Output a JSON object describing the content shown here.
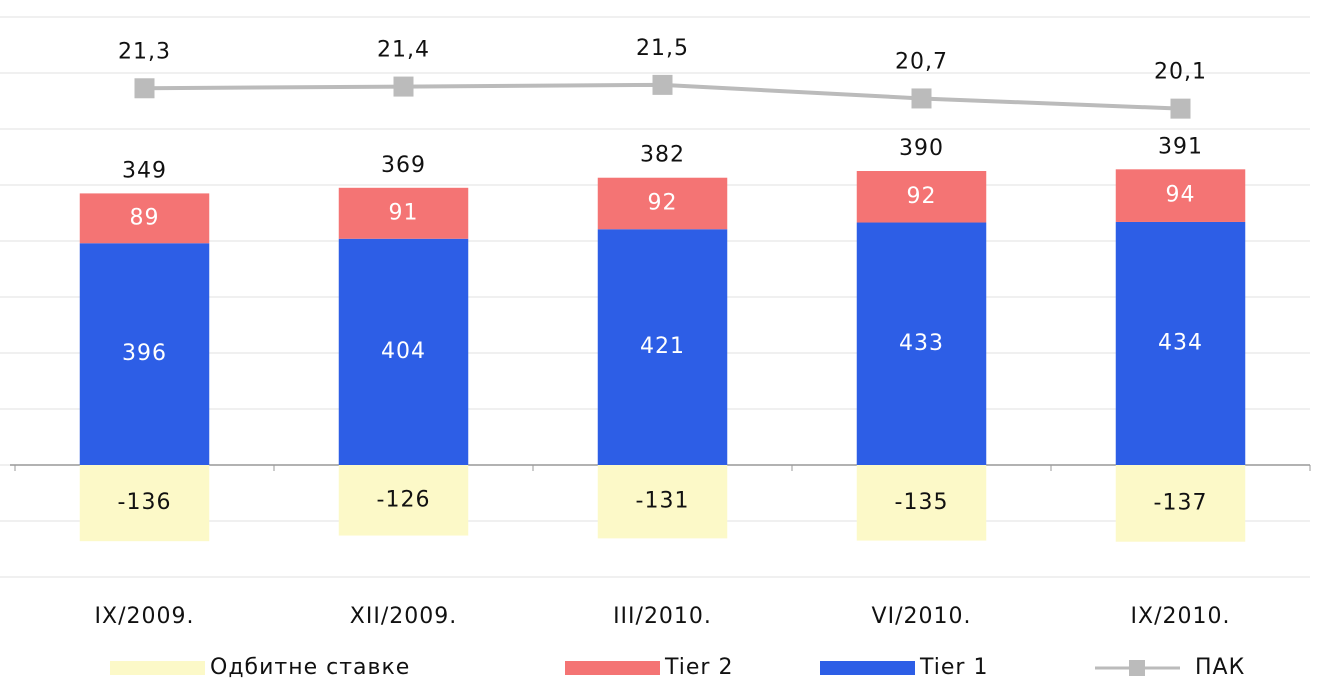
{
  "chart_data": {
    "type": "stacked-bar-line",
    "categories": [
      "IX/2009.",
      "XII/2009.",
      "III/2010.",
      "VI/2010.",
      "IX/2010."
    ],
    "series": [
      {
        "name": "Tier 1",
        "type": "bar",
        "color": "#2d5ee6",
        "values": [
          396,
          404,
          421,
          433,
          434
        ]
      },
      {
        "name": "Tier 2",
        "type": "bar",
        "color": "#f47474",
        "values": [
          89,
          91,
          92,
          92,
          94
        ]
      },
      {
        "name": "Одбитне ставке",
        "type": "bar",
        "color": "#fcf9c8",
        "values": [
          -136,
          -126,
          -131,
          -135,
          -137
        ]
      },
      {
        "name": "ПАК",
        "type": "line",
        "axis": "y2",
        "color": "#bbbbbb",
        "values": [
          21.3,
          21.4,
          21.5,
          20.7,
          20.1
        ],
        "value_labels": [
          "21,3",
          "21,4",
          "21,5",
          "20,7",
          "20,1"
        ]
      }
    ],
    "totals": [
      349,
      369,
      382,
      390,
      391
    ],
    "ylim": [
      -200,
      800
    ],
    "yticks": [
      -200,
      -100,
      0,
      100,
      200,
      300,
      400,
      500,
      600,
      700,
      800
    ],
    "y2lim": [
      -7.5,
      25.5
    ],
    "grid": true,
    "legend_order": [
      2,
      1,
      0,
      3
    ]
  }
}
